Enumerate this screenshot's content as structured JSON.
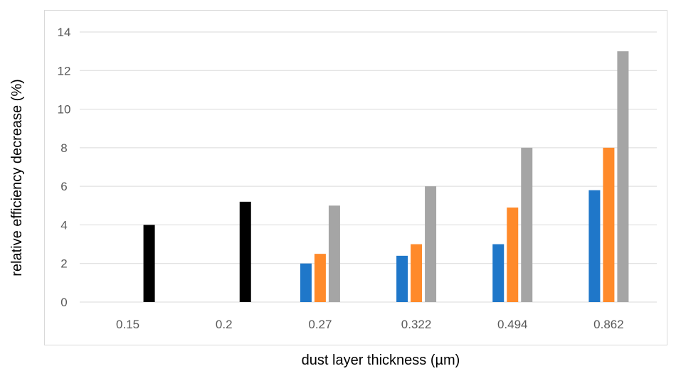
{
  "chart_data": {
    "type": "bar",
    "title": "",
    "xlabel": "dust layer thickness (µm)",
    "ylabel": "relative efficiency decrease (%)",
    "categories": [
      "0.15",
      "0.2",
      "0.27",
      "0.322",
      "0.494",
      "0.862"
    ],
    "ylim": [
      0,
      14
    ],
    "yticks": [
      0,
      2,
      4,
      6,
      8,
      10,
      12,
      14
    ],
    "grid": true,
    "legend": "none",
    "series": [
      {
        "color": "#1f77c9",
        "values": [
          null,
          null,
          2.0,
          2.4,
          3.0,
          5.8
        ]
      },
      {
        "color": "#ff8a2a",
        "values": [
          null,
          null,
          2.5,
          3.0,
          4.9,
          8.0
        ]
      },
      {
        "color": "#a5a5a5",
        "values": [
          null,
          null,
          5.0,
          6.0,
          8.0,
          13.0
        ]
      },
      {
        "color": "#000000",
        "values": [
          4.0,
          5.2,
          null,
          null,
          null,
          null
        ]
      }
    ]
  }
}
